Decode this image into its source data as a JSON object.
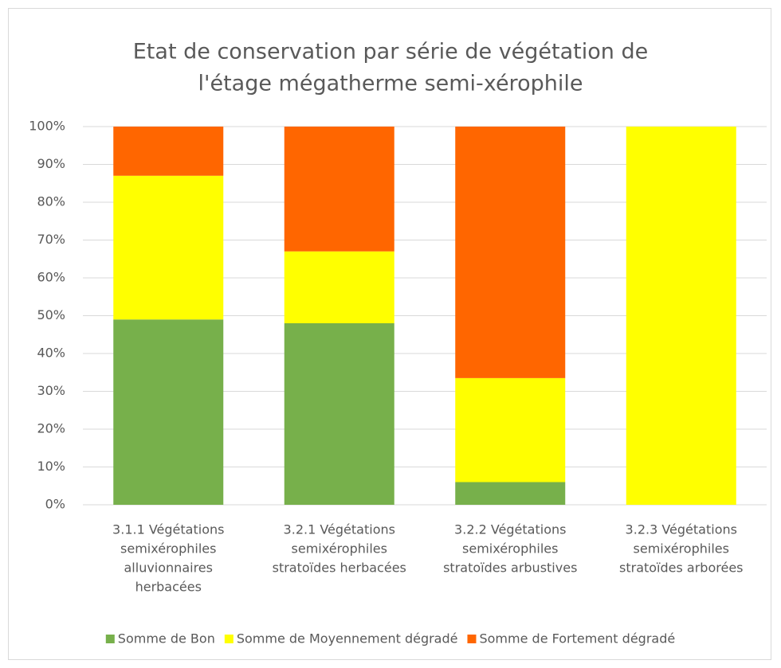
{
  "chart_data": {
    "type": "bar",
    "stacked": true,
    "title": [
      "Etat de conservation par série de végétation de",
      "l'étage mégatherme semi-xérophile"
    ],
    "categories": [
      [
        "3.1.1 Végétations",
        "semixérophiles",
        "alluvionnaires",
        "herbacées"
      ],
      [
        "3.2.1 Végétations",
        "semixérophiles",
        "stratoïdes herbacées"
      ],
      [
        "3.2.2 Végétations",
        "semixérophiles",
        "stratoïdes arbustives"
      ],
      [
        "3.2.3 Végétations",
        "semixérophiles",
        "stratoïdes arborées"
      ]
    ],
    "series": [
      {
        "name": "Somme de Bon",
        "color": "#77b04b",
        "values": [
          49,
          48,
          6,
          0
        ]
      },
      {
        "name": "Somme de Moyennement dégradé",
        "color": "#ffff00",
        "values": [
          38,
          19,
          27.5,
          100
        ]
      },
      {
        "name": "Somme de Fortement dégradé",
        "color": "#ff6600",
        "values": [
          13,
          33,
          66.5,
          0
        ]
      }
    ],
    "ylim": [
      0,
      100
    ],
    "yticks": [
      {
        "value": 0,
        "label": "0%"
      },
      {
        "value": 10,
        "label": "10%"
      },
      {
        "value": 20,
        "label": "20%"
      },
      {
        "value": 30,
        "label": "30%"
      },
      {
        "value": 40,
        "label": "40%"
      },
      {
        "value": 50,
        "label": "50%"
      },
      {
        "value": 60,
        "label": "60%"
      },
      {
        "value": 70,
        "label": "70%"
      },
      {
        "value": 80,
        "label": "80%"
      },
      {
        "value": 90,
        "label": "90%"
      },
      {
        "value": 100,
        "label": "100%"
      }
    ],
    "grid": true,
    "legend": "bottom"
  }
}
